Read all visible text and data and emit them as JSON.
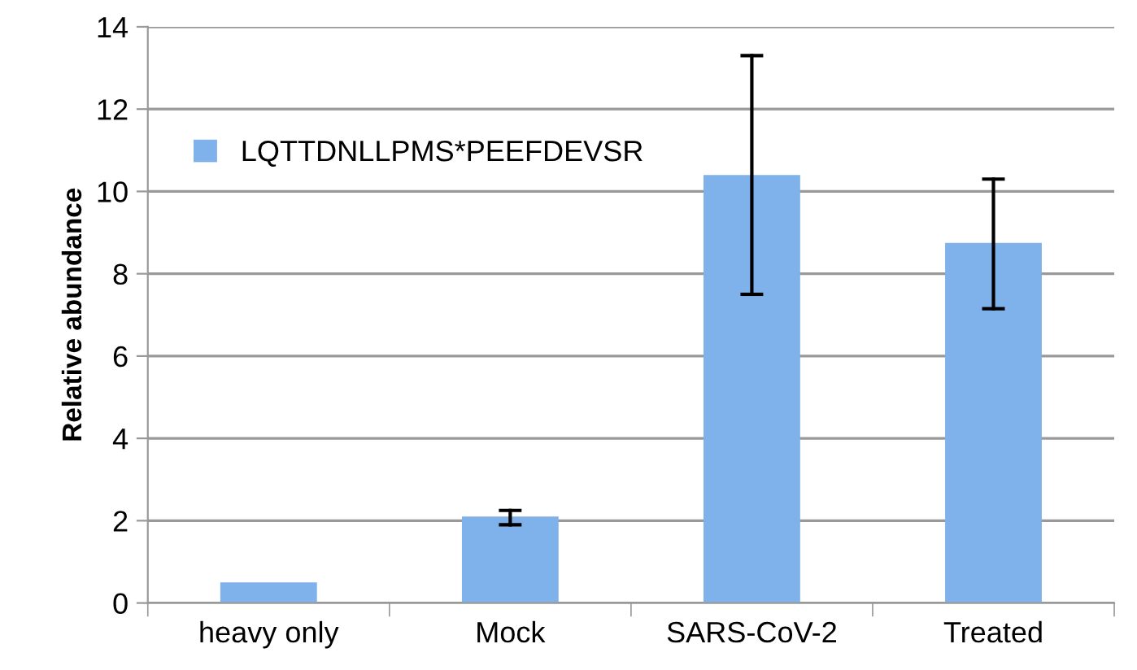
{
  "chart_data": {
    "type": "bar",
    "ylabel": "Relative abundance",
    "categories": [
      "heavy only",
      "Mock",
      "SARS-CoV-2",
      "Treated"
    ],
    "series": [
      {
        "name": "LQTTDNLLPMS*PEEFDEVSR",
        "color": "#7fb1ea",
        "values": [
          0.5,
          2.1,
          10.4,
          8.75
        ],
        "errors": [
          null,
          [
            1.9,
            2.25
          ],
          [
            7.5,
            13.3
          ],
          [
            7.15,
            10.3
          ]
        ]
      }
    ],
    "ylim": [
      0,
      14
    ],
    "yticks": [
      0,
      2,
      4,
      6,
      8,
      10,
      12,
      14
    ],
    "grid": "y",
    "legend": "top left"
  }
}
